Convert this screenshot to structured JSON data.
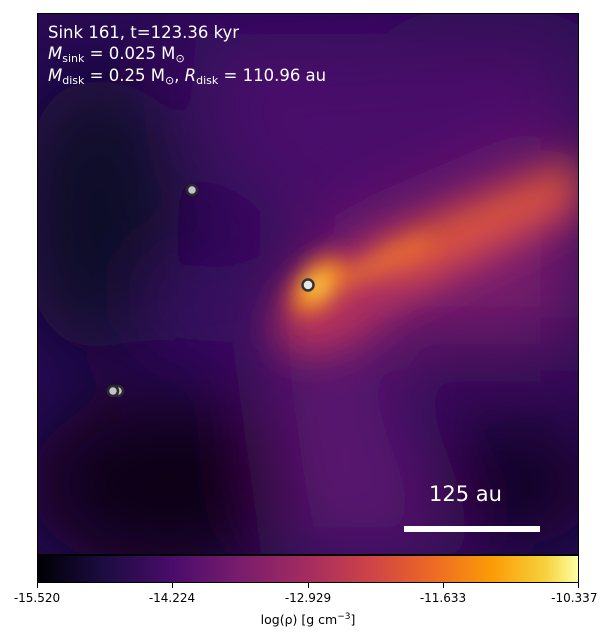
{
  "annotation": {
    "title": "Sink 161, t=123.36 kyr",
    "m_sink_symbol": "M",
    "m_sink_sub": "sink",
    "m_sink_value": " = 0.025 M",
    "m_sun_sub": "⊙",
    "m_disk_symbol": "M",
    "m_disk_sub": "disk",
    "m_disk_value": " = 0.25 M",
    "m_disk_sun_sub": "⊙",
    "comma": ", ",
    "r_disk_symbol": "R",
    "r_disk_sub": "disk",
    "r_disk_value": " = 110.96 au"
  },
  "scale_bar": {
    "label": "125 au"
  },
  "colorbar": {
    "colormap": "inferno",
    "ticks": [
      "-15.520",
      "-14.224",
      "-12.929",
      "-11.633",
      "-10.337"
    ],
    "label_prefix": "log(ρ) [g cm",
    "label_exp": "−3",
    "label_suffix": "]"
  },
  "sinks": [
    {
      "name": "central-sink",
      "shade": "#e8e8e8"
    },
    {
      "name": "upper-sink",
      "shade": "#c8c0cc"
    },
    {
      "name": "lower-left-sink-a",
      "shade": "#c8c0cc"
    },
    {
      "name": "lower-left-sink-b",
      "shade": "#c8c0cc"
    }
  ]
}
